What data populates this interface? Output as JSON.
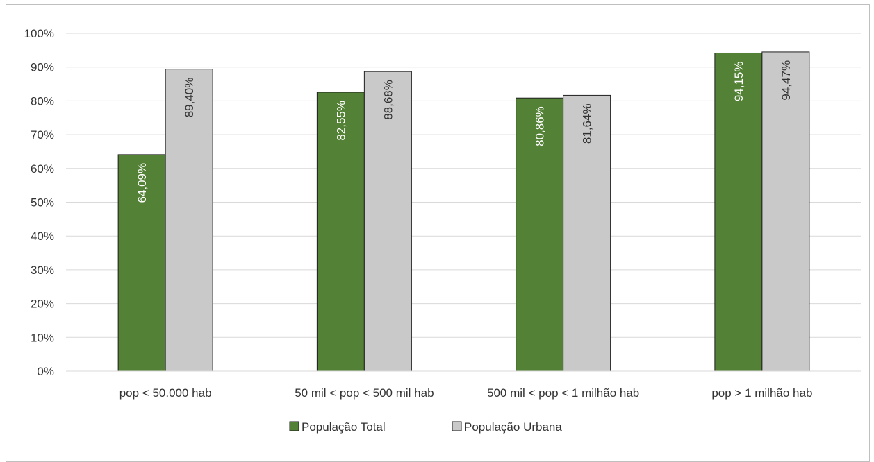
{
  "chart_data": {
    "type": "bar",
    "categories": [
      "pop < 50.000 hab",
      "50 mil < pop < 500 mil hab",
      "500 mil < pop < 1 milhão hab",
      "pop > 1 milhão hab"
    ],
    "series": [
      {
        "name": "População Total",
        "values": [
          64.09,
          82.55,
          80.86,
          94.15
        ],
        "labels": [
          "64,09%",
          "82,55%",
          "80,86%",
          "94,15%"
        ],
        "color": "#538135",
        "label_color": "#ffffff"
      },
      {
        "name": "População Urbana",
        "values": [
          89.4,
          88.68,
          81.64,
          94.47
        ],
        "labels": [
          "89,40%",
          "88,68%",
          "81,64%",
          "94,47%"
        ],
        "color": "#c9c9c9",
        "label_color": "#333333"
      }
    ],
    "yticks": [
      "0%",
      "10%",
      "20%",
      "30%",
      "40%",
      "50%",
      "60%",
      "70%",
      "80%",
      "90%",
      "100%"
    ],
    "ylim": [
      0,
      100
    ],
    "grid": true,
    "legend": "bottom-center",
    "title": "",
    "xlabel": "",
    "ylabel": ""
  }
}
